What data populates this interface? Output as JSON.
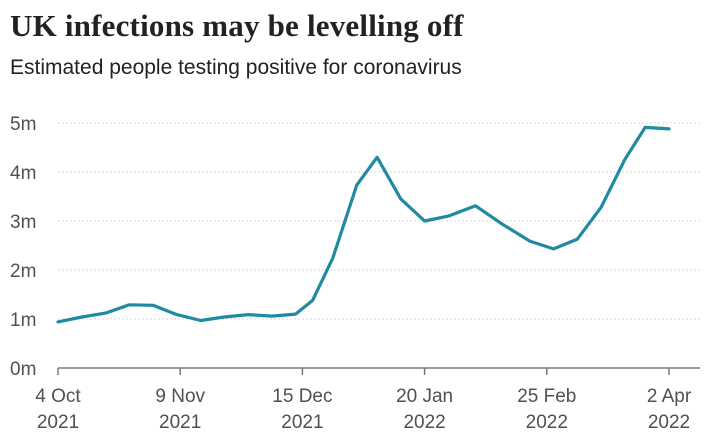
{
  "chart_data": {
    "type": "line",
    "title": "UK infections may be levelling off",
    "subtitle": "Estimated people testing positive for coronavirus",
    "xlabel": "",
    "ylabel": "",
    "ylim": [
      0,
      5
    ],
    "y_ticks": [
      {
        "value": 0,
        "label": "0m"
      },
      {
        "value": 1,
        "label": "1m"
      },
      {
        "value": 2,
        "label": "2m"
      },
      {
        "value": 3,
        "label": "3m"
      },
      {
        "value": 4,
        "label": "4m"
      },
      {
        "value": 5,
        "label": "5m"
      }
    ],
    "x_ticks": [
      {
        "date": "2021-10-04",
        "line1": "4 Oct",
        "line2": "2021"
      },
      {
        "date": "2021-11-09",
        "line1": "9 Nov",
        "line2": "2021"
      },
      {
        "date": "2021-12-15",
        "line1": "15 Dec",
        "line2": "2021"
      },
      {
        "date": "2022-01-20",
        "line1": "20 Jan",
        "line2": "2022"
      },
      {
        "date": "2022-02-25",
        "line1": "25 Feb",
        "line2": "2022"
      },
      {
        "date": "2022-04-02",
        "line1": "2 Apr",
        "line2": "2022"
      }
    ],
    "grid": true,
    "color": "#1f8aa0",
    "series": [
      {
        "x": [
          "2021-10-04",
          "2021-10-11",
          "2021-10-18",
          "2021-10-25",
          "2021-11-01",
          "2021-11-08",
          "2021-11-15",
          "2021-11-22",
          "2021-11-29",
          "2021-12-06",
          "2021-12-13",
          "2021-12-18",
          "2021-12-24",
          "2021-12-31",
          "2022-01-06",
          "2022-01-13",
          "2022-01-20",
          "2022-01-27",
          "2022-02-04",
          "2022-02-12",
          "2022-02-20",
          "2022-02-27",
          "2022-03-06",
          "2022-03-13",
          "2022-03-20",
          "2022-03-26",
          "2022-04-02"
        ],
        "values": [
          0.94,
          1.04,
          1.12,
          1.29,
          1.28,
          1.09,
          0.97,
          1.04,
          1.09,
          1.06,
          1.1,
          1.38,
          2.25,
          3.73,
          4.3,
          3.45,
          3.0,
          3.1,
          3.31,
          2.93,
          2.59,
          2.43,
          2.63,
          3.28,
          4.26,
          4.91,
          4.88
        ]
      }
    ]
  }
}
